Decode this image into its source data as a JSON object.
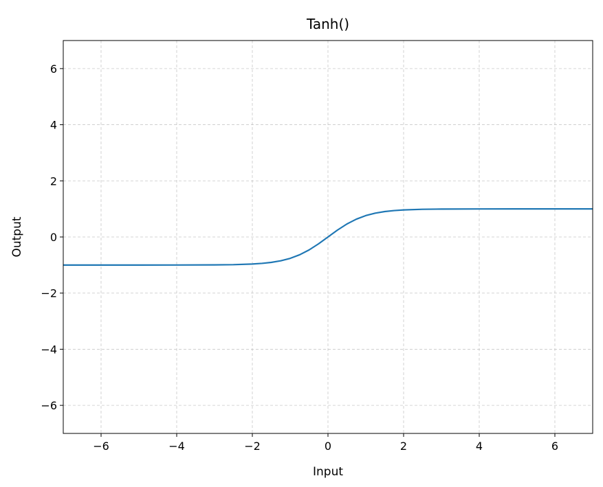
{
  "chart_data": {
    "type": "line",
    "title": "Tanh()",
    "xlabel": "Input",
    "ylabel": "Output",
    "xlim": [
      -7,
      7
    ],
    "ylim": [
      -7,
      7
    ],
    "x_ticks": [
      -6,
      -4,
      -2,
      0,
      2,
      4,
      6
    ],
    "y_ticks": [
      -6,
      -4,
      -2,
      0,
      2,
      4,
      6
    ],
    "x_tick_labels": [
      "−6",
      "−4",
      "−2",
      "0",
      "2",
      "4",
      "6"
    ],
    "y_tick_labels": [
      "−6",
      "−4",
      "−2",
      "0",
      "2",
      "4",
      "6"
    ],
    "grid": true,
    "series": [
      {
        "color": "#1f77b4",
        "x": [
          -7,
          -6,
          -5,
          -4,
          -3,
          -2.5,
          -2,
          -1.75,
          -1.5,
          -1.25,
          -1,
          -0.75,
          -0.5,
          -0.25,
          0,
          0.25,
          0.5,
          0.75,
          1,
          1.25,
          1.5,
          1.75,
          2,
          2.5,
          3,
          4,
          5,
          6,
          7
        ],
        "y": [
          -1.0,
          -1.0,
          -1.0,
          -0.999,
          -0.995,
          -0.987,
          -0.964,
          -0.941,
          -0.905,
          -0.848,
          -0.762,
          -0.635,
          -0.462,
          -0.245,
          0.0,
          0.245,
          0.462,
          0.635,
          0.762,
          0.848,
          0.905,
          0.941,
          0.964,
          0.987,
          0.995,
          0.999,
          1.0,
          1.0,
          1.0
        ]
      }
    ]
  }
}
